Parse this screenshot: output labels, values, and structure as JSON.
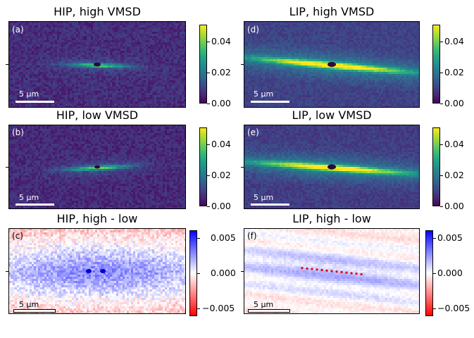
{
  "chart_data": [
    {
      "type": "heatmap",
      "panel": "a",
      "title": "HIP, high VMSD",
      "scalebar_label": "5 μm",
      "colormap": "viridis",
      "colorbar_ticks": [
        "0.00",
        "0.02",
        "0.04"
      ],
      "clim": [
        0.0,
        0.05
      ]
    },
    {
      "type": "heatmap",
      "panel": "b",
      "title": "HIP, low VMSD",
      "scalebar_label": "5 μm",
      "colormap": "viridis",
      "colorbar_ticks": [
        "0.00",
        "0.02",
        "0.04"
      ],
      "clim": [
        0.0,
        0.05
      ]
    },
    {
      "type": "heatmap",
      "panel": "c",
      "title": "HIP, high - low",
      "scalebar_label": "5 μm",
      "colormap": "bwr_reversed",
      "colorbar_ticks": [
        "0.005",
        "0.000",
        "−0.005"
      ],
      "clim": [
        -0.006,
        0.006
      ]
    },
    {
      "type": "heatmap",
      "panel": "d",
      "title": "LIP, high VMSD",
      "scalebar_label": "5 μm",
      "colormap": "viridis",
      "colorbar_ticks": [
        "0.00",
        "0.02",
        "0.04"
      ],
      "clim": [
        0.0,
        0.05
      ]
    },
    {
      "type": "heatmap",
      "panel": "e",
      "title": "LIP, low VMSD",
      "scalebar_label": "5 μm",
      "colormap": "viridis",
      "colorbar_ticks": [
        "0.00",
        "0.02",
        "0.04"
      ],
      "clim": [
        0.0,
        0.05
      ]
    },
    {
      "type": "heatmap",
      "panel": "f",
      "title": "LIP, high - low",
      "scalebar_label": "5 μm",
      "colormap": "bwr_reversed",
      "colorbar_ticks": [
        "0.005",
        "0.000",
        "−0.005"
      ],
      "clim": [
        -0.006,
        0.006
      ]
    }
  ],
  "panels": {
    "a": {
      "title": "HIP, high VMSD",
      "letter": "(a)",
      "scale": "5 μm"
    },
    "b": {
      "title": "HIP, low VMSD",
      "letter": "(b)",
      "scale": "5 μm"
    },
    "c": {
      "title": "HIP, high - low",
      "letter": "(c)",
      "scale": "5 μm"
    },
    "d": {
      "title": "LIP, high VMSD",
      "letter": "(d)",
      "scale": "5 μm"
    },
    "e": {
      "title": "LIP, low VMSD",
      "letter": "(e)",
      "scale": "5 μm"
    },
    "f": {
      "title": "LIP, high - low",
      "letter": "(f)",
      "scale": "5 μm"
    }
  },
  "colorbars": {
    "viridis_ticks": [
      "0.04",
      "0.02",
      "0.00"
    ],
    "diverging_ticks": [
      "0.005",
      "0.000",
      "−0.005"
    ]
  },
  "colors": {
    "viridis_low": "#440154",
    "viridis_high": "#fde725",
    "diverging_pos": "#0000ff",
    "diverging_neg": "#ff0000",
    "diverging_mid": "#ffffff"
  }
}
